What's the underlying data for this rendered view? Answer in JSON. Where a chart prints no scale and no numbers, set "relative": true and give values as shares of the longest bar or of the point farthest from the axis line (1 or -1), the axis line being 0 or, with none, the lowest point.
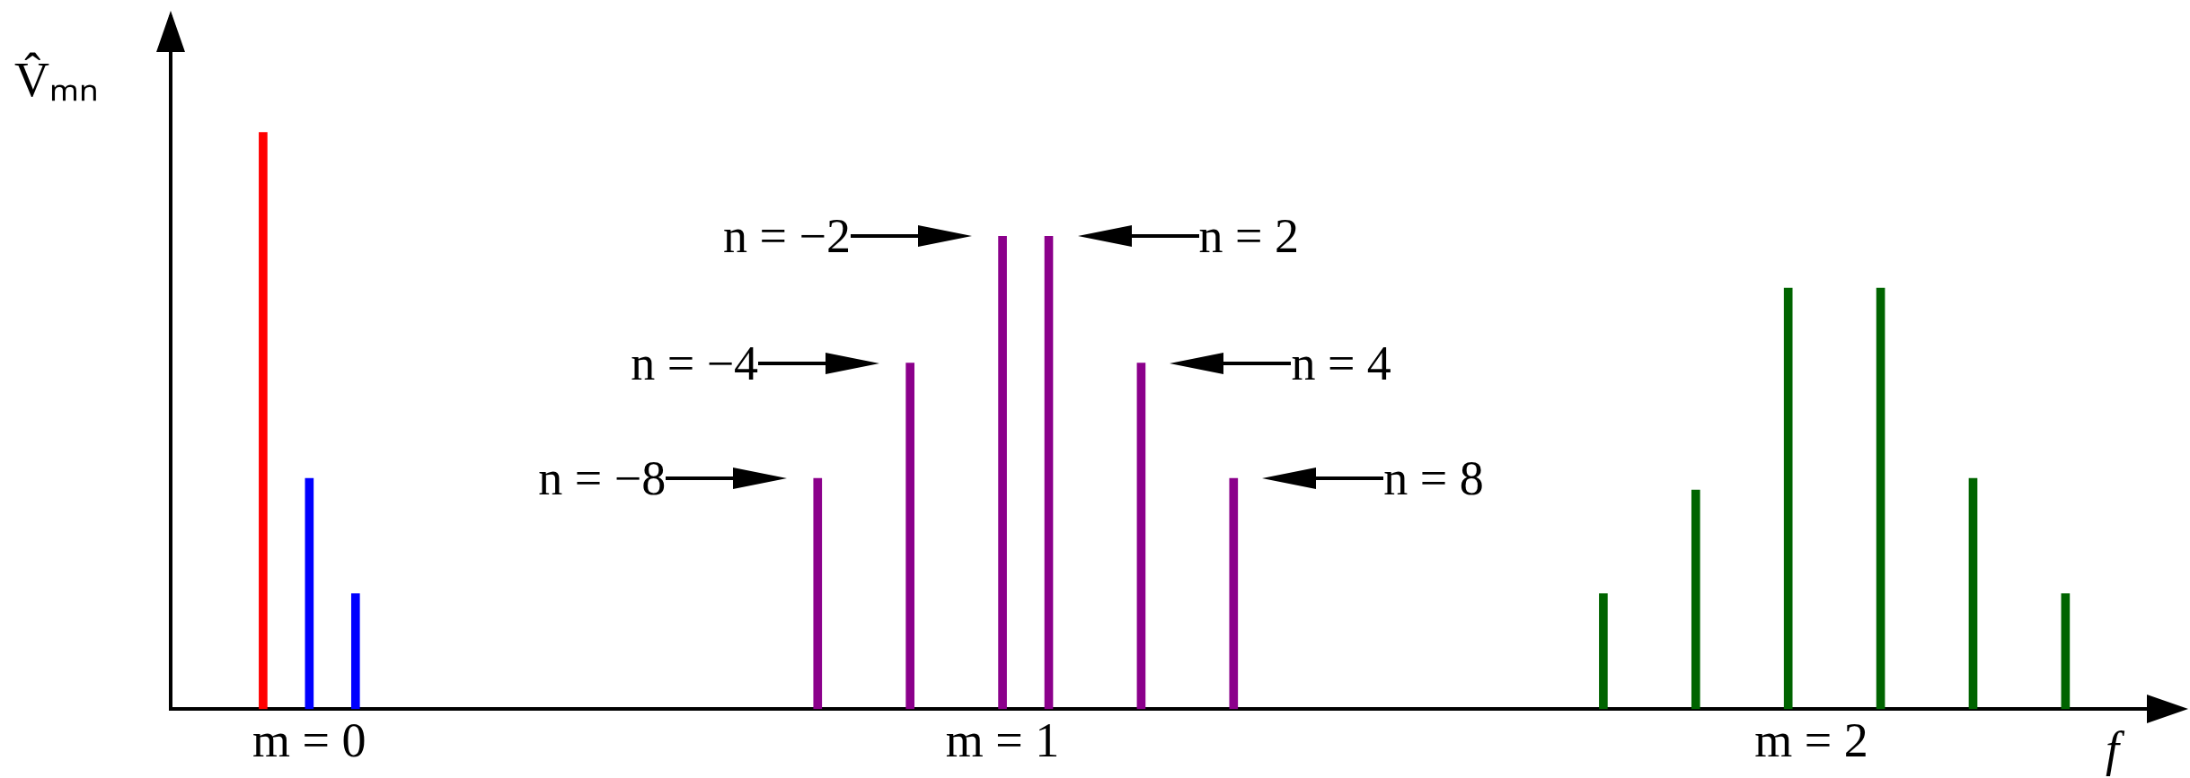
{
  "chart_data": {
    "type": "bar",
    "relative": true,
    "ylabel": "V̂ₘₙ",
    "xlabel": "f",
    "categories": [
      null,
      null,
      null,
      null,
      null,
      null,
      "m = 0",
      null,
      null,
      null,
      null,
      null,
      null,
      null,
      null,
      null,
      null,
      null,
      null,
      null,
      null,
      null,
      null,
      null,
      null,
      null,
      null,
      null,
      null,
      null,
      null,
      null,
      null,
      null,
      null,
      null,
      "m = 1",
      null,
      null,
      null,
      null,
      null,
      null,
      null,
      null,
      null,
      null,
      null,
      null,
      null,
      null,
      null,
      null,
      null,
      null,
      null,
      null,
      null,
      null,
      null,
      null,
      null,
      null,
      null,
      null,
      null,
      null,
      null,
      null,
      null,
      null,
      "m = 2",
      null,
      null,
      null,
      null,
      null,
      null,
      null,
      null,
      null,
      null,
      null,
      null,
      null,
      null,
      null,
      null
    ],
    "series": [
      {
        "color": "#ff0000",
        "values": [
          null,
          null,
          null,
          null,
          1,
          null,
          null,
          null,
          null,
          null,
          null,
          null,
          null,
          null,
          null,
          null,
          null,
          null,
          null,
          null,
          null,
          null,
          null,
          null,
          null,
          null,
          null,
          null,
          null,
          null,
          null,
          null,
          null,
          null,
          null,
          null,
          null,
          null,
          null,
          null,
          null,
          null,
          null,
          null,
          null,
          null,
          null,
          null,
          null,
          null,
          null,
          null,
          null,
          null,
          null,
          null,
          null,
          null,
          null,
          null,
          null,
          null,
          null,
          null,
          null,
          null,
          null,
          null,
          null,
          null,
          null,
          null,
          null,
          null,
          null,
          null,
          null,
          null,
          null,
          null,
          null,
          null,
          null,
          null,
          null,
          null,
          null,
          null
        ]
      },
      {
        "color": "#0000ff",
        "values": [
          null,
          null,
          null,
          null,
          null,
          null,
          0.4,
          null,
          0.2,
          null,
          null,
          null,
          null,
          null,
          null,
          null,
          null,
          null,
          null,
          null,
          null,
          null,
          null,
          null,
          null,
          null,
          null,
          null,
          null,
          null,
          null,
          null,
          null,
          null,
          null,
          null,
          null,
          null,
          null,
          null,
          null,
          null,
          null,
          null,
          null,
          null,
          null,
          null,
          null,
          null,
          null,
          null,
          null,
          null,
          null,
          null,
          null,
          null,
          null,
          null,
          null,
          null,
          null,
          null,
          null,
          null,
          null,
          null,
          null,
          null,
          null,
          null,
          null,
          null,
          null,
          null,
          null,
          null,
          null,
          null,
          null,
          null,
          null,
          null,
          null,
          null,
          null,
          null
        ]
      },
      {
        "color": "#8b008b",
        "values": [
          null,
          null,
          null,
          null,
          null,
          null,
          null,
          null,
          null,
          null,
          null,
          null,
          null,
          null,
          null,
          null,
          null,
          null,
          null,
          null,
          null,
          null,
          null,
          null,
          null,
          null,
          null,
          null,
          0.4,
          null,
          null,
          null,
          0.6,
          null,
          null,
          null,
          0.82,
          null,
          0.82,
          null,
          null,
          null,
          0.6,
          null,
          null,
          null,
          0.4,
          null,
          null,
          null,
          null,
          null,
          null,
          null,
          null,
          null,
          null,
          null,
          null,
          null,
          null,
          null,
          null,
          null,
          null,
          null,
          null,
          null,
          null,
          null,
          null,
          null,
          null,
          null,
          null,
          null,
          null,
          null,
          null,
          null,
          null,
          null,
          null,
          null,
          null,
          null,
          null,
          null
        ]
      },
      {
        "color": "#006400",
        "values": [
          null,
          null,
          null,
          null,
          null,
          null,
          null,
          null,
          null,
          null,
          null,
          null,
          null,
          null,
          null,
          null,
          null,
          null,
          null,
          null,
          null,
          null,
          null,
          null,
          null,
          null,
          null,
          null,
          null,
          null,
          null,
          null,
          null,
          null,
          null,
          null,
          null,
          null,
          null,
          null,
          null,
          null,
          null,
          null,
          null,
          null,
          null,
          null,
          null,
          null,
          null,
          null,
          null,
          null,
          null,
          null,
          null,
          null,
          null,
          null,
          null,
          null,
          0.2,
          null,
          null,
          null,
          0.38,
          null,
          null,
          null,
          0.73,
          null,
          null,
          null,
          0.73,
          null,
          null,
          null,
          0.4,
          null,
          null,
          null,
          0.2,
          null,
          null,
          null,
          null,
          null
        ]
      }
    ],
    "annotations": [
      "n = −2",
      "n = 2",
      "n = −4",
      "n = 4",
      "n = −8",
      "n = 8"
    ]
  }
}
